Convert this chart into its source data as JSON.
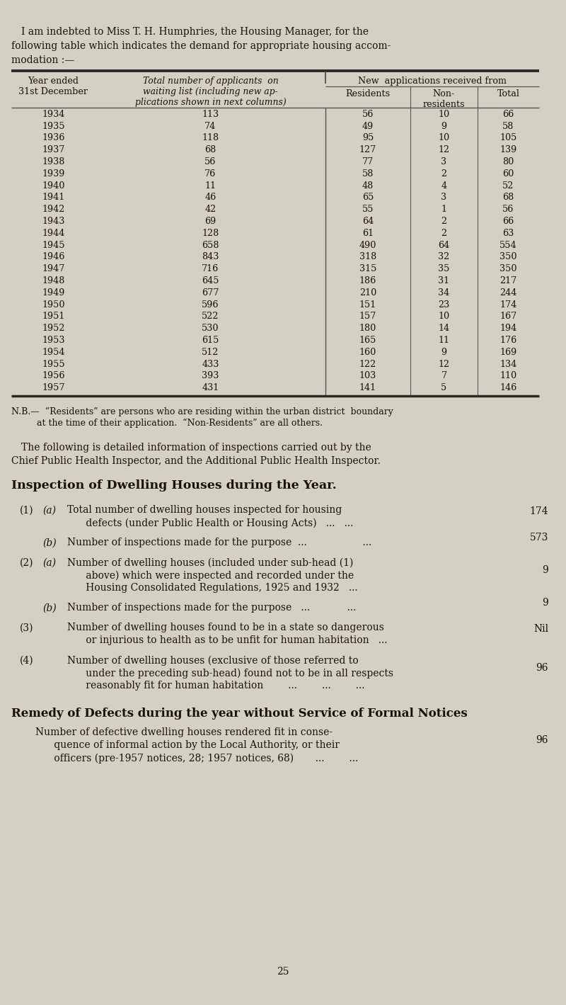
{
  "bg_color": "#d4d0c4",
  "text_color": "#1a1008",
  "years": [
    "1934",
    "1935",
    "1936",
    "1937",
    "1938",
    "1939",
    "1940",
    "1941",
    "1942",
    "1943",
    "1944",
    "1945",
    "1946",
    "1947",
    "1948",
    "1949",
    "1950",
    "1951",
    "1952",
    "1953",
    "1954",
    "1955",
    "1956",
    "1957"
  ],
  "total_applicants": [
    "113",
    "74",
    "118",
    "68",
    "56",
    "76",
    "11",
    "46",
    "42",
    "69",
    "128",
    "658",
    "843",
    "716",
    "645",
    "677",
    "596",
    "522",
    "530",
    "615",
    "512",
    "433",
    "393",
    "431"
  ],
  "residents": [
    "56",
    "49",
    "95",
    "127",
    "77",
    "58",
    "48",
    "65",
    "55",
    "64",
    "61",
    "490",
    "318",
    "315",
    "186",
    "210",
    "151",
    "157",
    "180",
    "165",
    "160",
    "122",
    "103",
    "141"
  ],
  "non_residents": [
    "10",
    "9",
    "10",
    "12",
    "3",
    "2",
    "4",
    "3",
    "1",
    "2",
    "2",
    "64",
    "32",
    "35",
    "31",
    "34",
    "23",
    "10",
    "14",
    "11",
    "9",
    "12",
    "7",
    "5"
  ],
  "totals": [
    "66",
    "58",
    "105",
    "139",
    "80",
    "60",
    "52",
    "68",
    "56",
    "66",
    "63",
    "554",
    "350",
    "350",
    "217",
    "244",
    "174",
    "167",
    "194",
    "176",
    "169",
    "134",
    "110",
    "146"
  ],
  "page_number": "25"
}
